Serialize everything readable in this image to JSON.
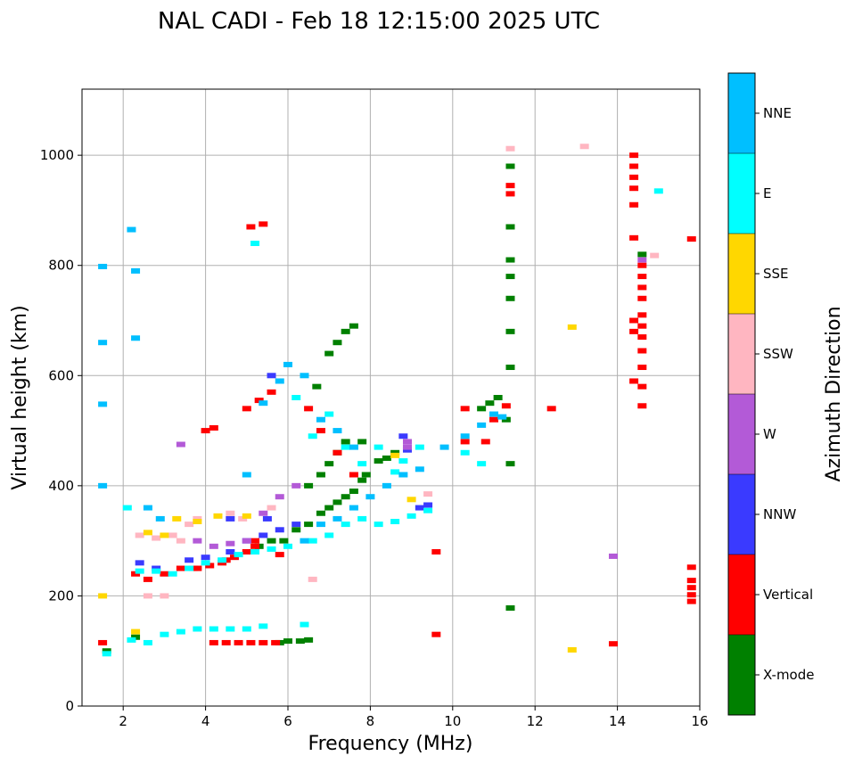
{
  "chart_data": {
    "type": "scatter",
    "title": "NAL CADI - Feb 18 12:15:00 2025 UTC",
    "xlabel": "Frequency (MHz)",
    "ylabel": "Virtual height (km)",
    "xlim": [
      1,
      16
    ],
    "ylim": [
      0,
      1120
    ],
    "xticks": [
      2,
      4,
      6,
      8,
      10,
      12,
      14,
      16
    ],
    "yticks": [
      0,
      200,
      400,
      600,
      800,
      1000
    ],
    "grid": true,
    "colorbar": {
      "title": "Azimuth Direction",
      "categories": [
        {
          "name": "X-mode",
          "color": "#008000"
        },
        {
          "name": "Vertical",
          "color": "#ff0000"
        },
        {
          "name": "NNW",
          "color": "#3a3aff"
        },
        {
          "name": "W",
          "color": "#b35ad7"
        },
        {
          "name": "SSW",
          "color": "#ffb6c1"
        },
        {
          "name": "SSE",
          "color": "#ffd700"
        },
        {
          "name": "E",
          "color": "#00ffff"
        },
        {
          "name": "NNE",
          "color": "#00bfff"
        }
      ]
    },
    "series": [
      {
        "name": "X-mode",
        "points": [
          [
            1.6,
            100
          ],
          [
            2.3,
            125
          ],
          [
            5.8,
            115
          ],
          [
            6.0,
            118
          ],
          [
            6.3,
            118
          ],
          [
            6.5,
            120
          ],
          [
            5.9,
            300
          ],
          [
            6.2,
            320
          ],
          [
            6.5,
            330
          ],
          [
            6.8,
            350
          ],
          [
            7.0,
            360
          ],
          [
            7.2,
            370
          ],
          [
            7.4,
            380
          ],
          [
            7.6,
            390
          ],
          [
            7.8,
            410
          ],
          [
            7.9,
            420
          ],
          [
            8.2,
            445
          ],
          [
            8.4,
            450
          ],
          [
            8.6,
            460
          ],
          [
            6.5,
            400
          ],
          [
            6.8,
            420
          ],
          [
            7.0,
            440
          ],
          [
            7.2,
            460
          ],
          [
            7.4,
            480
          ],
          [
            7.8,
            480
          ],
          [
            6.7,
            580
          ],
          [
            7.0,
            640
          ],
          [
            7.2,
            660
          ],
          [
            7.4,
            680
          ],
          [
            7.6,
            690
          ],
          [
            10.7,
            540
          ],
          [
            10.9,
            550
          ],
          [
            11.1,
            560
          ],
          [
            11.3,
            520
          ],
          [
            11.4,
            980
          ],
          [
            11.4,
            870
          ],
          [
            11.4,
            810
          ],
          [
            11.4,
            780
          ],
          [
            11.4,
            740
          ],
          [
            11.4,
            680
          ],
          [
            11.4,
            615
          ],
          [
            11.4,
            440
          ],
          [
            11.4,
            178
          ],
          [
            14.6,
            820
          ],
          [
            5.3,
            290
          ],
          [
            5.6,
            300
          ]
        ]
      },
      {
        "name": "Vertical",
        "points": [
          [
            1.5,
            115
          ],
          [
            4.2,
            115
          ],
          [
            4.5,
            115
          ],
          [
            4.8,
            115
          ],
          [
            5.1,
            115
          ],
          [
            5.4,
            115
          ],
          [
            5.7,
            115
          ],
          [
            2.3,
            240
          ],
          [
            2.6,
            230
          ],
          [
            3.0,
            240
          ],
          [
            3.4,
            250
          ],
          [
            3.8,
            250
          ],
          [
            4.1,
            255
          ],
          [
            4.4,
            260
          ],
          [
            4.7,
            270
          ],
          [
            5.0,
            280
          ],
          [
            5.2,
            290
          ],
          [
            4.0,
            500
          ],
          [
            4.2,
            505
          ],
          [
            5.0,
            540
          ],
          [
            5.3,
            555
          ],
          [
            5.6,
            570
          ],
          [
            5.1,
            870
          ],
          [
            5.4,
            875
          ],
          [
            6.5,
            540
          ],
          [
            6.8,
            500
          ],
          [
            7.2,
            460
          ],
          [
            7.6,
            420
          ],
          [
            9.6,
            280
          ],
          [
            9.6,
            130
          ],
          [
            10.3,
            540
          ],
          [
            10.3,
            480
          ],
          [
            10.8,
            480
          ],
          [
            11.0,
            520
          ],
          [
            11.3,
            545
          ],
          [
            11.4,
            945
          ],
          [
            11.4,
            930
          ],
          [
            12.4,
            540
          ],
          [
            13.9,
            113
          ],
          [
            14.4,
            1000
          ],
          [
            14.4,
            980
          ],
          [
            14.4,
            960
          ],
          [
            14.4,
            940
          ],
          [
            14.4,
            910
          ],
          [
            14.4,
            850
          ],
          [
            14.4,
            700
          ],
          [
            14.4,
            680
          ],
          [
            14.4,
            590
          ],
          [
            14.6,
            800
          ],
          [
            14.6,
            780
          ],
          [
            14.6,
            760
          ],
          [
            14.6,
            740
          ],
          [
            14.6,
            710
          ],
          [
            14.6,
            690
          ],
          [
            14.6,
            670
          ],
          [
            14.6,
            645
          ],
          [
            14.6,
            615
          ],
          [
            14.6,
            580
          ],
          [
            14.6,
            545
          ],
          [
            15.8,
            848
          ],
          [
            15.8,
            252
          ],
          [
            15.8,
            228
          ],
          [
            15.8,
            215
          ],
          [
            15.8,
            202
          ],
          [
            15.8,
            190
          ],
          [
            3.7,
            250
          ],
          [
            4.5,
            265
          ],
          [
            5.2,
            300
          ],
          [
            5.8,
            275
          ]
        ]
      },
      {
        "name": "NNW",
        "points": [
          [
            2.4,
            260
          ],
          [
            2.8,
            250
          ],
          [
            3.6,
            265
          ],
          [
            4.0,
            270
          ],
          [
            4.6,
            280
          ],
          [
            5.0,
            300
          ],
          [
            5.4,
            310
          ],
          [
            5.8,
            320
          ],
          [
            6.2,
            330
          ],
          [
            8.8,
            490
          ],
          [
            8.9,
            465
          ],
          [
            9.2,
            360
          ],
          [
            9.4,
            365
          ],
          [
            5.6,
            600
          ],
          [
            5.5,
            340
          ],
          [
            4.6,
            340
          ]
        ]
      },
      {
        "name": "W",
        "points": [
          [
            3.4,
            475
          ],
          [
            3.8,
            300
          ],
          [
            4.2,
            290
          ],
          [
            4.6,
            295
          ],
          [
            5.0,
            300
          ],
          [
            5.4,
            350
          ],
          [
            5.8,
            380
          ],
          [
            6.2,
            400
          ],
          [
            8.9,
            480
          ],
          [
            8.9,
            470
          ],
          [
            13.9,
            272
          ],
          [
            14.6,
            810
          ]
        ]
      },
      {
        "name": "SSW",
        "points": [
          [
            2.4,
            310
          ],
          [
            2.8,
            305
          ],
          [
            3.2,
            310
          ],
          [
            3.6,
            330
          ],
          [
            2.6,
            200
          ],
          [
            3.0,
            200
          ],
          [
            3.4,
            300
          ],
          [
            3.8,
            340
          ],
          [
            4.6,
            350
          ],
          [
            9.4,
            385
          ],
          [
            11.4,
            1012
          ],
          [
            13.2,
            1016
          ],
          [
            14.9,
            818
          ],
          [
            6.6,
            230
          ],
          [
            4.9,
            340
          ],
          [
            5.6,
            360
          ]
        ]
      },
      {
        "name": "SSE",
        "points": [
          [
            1.5,
            200
          ],
          [
            2.3,
            135
          ],
          [
            2.6,
            315
          ],
          [
            3.0,
            310
          ],
          [
            3.3,
            340
          ],
          [
            3.8,
            335
          ],
          [
            4.3,
            345
          ],
          [
            5.0,
            345
          ],
          [
            8.6,
            455
          ],
          [
            9.0,
            375
          ],
          [
            12.9,
            688
          ],
          [
            12.9,
            102
          ]
        ]
      },
      {
        "name": "E",
        "points": [
          [
            1.6,
            95
          ],
          [
            2.1,
            360
          ],
          [
            2.2,
            120
          ],
          [
            2.6,
            115
          ],
          [
            3.0,
            130
          ],
          [
            3.4,
            135
          ],
          [
            3.8,
            140
          ],
          [
            4.2,
            140
          ],
          [
            4.6,
            140
          ],
          [
            5.0,
            140
          ],
          [
            5.4,
            145
          ],
          [
            6.4,
            148
          ],
          [
            2.4,
            245
          ],
          [
            2.8,
            245
          ],
          [
            3.2,
            240
          ],
          [
            3.6,
            250
          ],
          [
            4.0,
            260
          ],
          [
            4.4,
            265
          ],
          [
            4.8,
            275
          ],
          [
            5.2,
            280
          ],
          [
            5.6,
            285
          ],
          [
            6.0,
            290
          ],
          [
            6.6,
            300
          ],
          [
            7.0,
            310
          ],
          [
            7.4,
            330
          ],
          [
            7.8,
            340
          ],
          [
            8.2,
            330
          ],
          [
            8.6,
            335
          ],
          [
            9.0,
            345
          ],
          [
            9.4,
            355
          ],
          [
            8.6,
            425
          ],
          [
            8.8,
            445
          ],
          [
            6.6,
            490
          ],
          [
            7.0,
            530
          ],
          [
            7.4,
            470
          ],
          [
            7.8,
            440
          ],
          [
            8.2,
            470
          ],
          [
            9.2,
            470
          ],
          [
            10.3,
            460
          ],
          [
            10.7,
            440
          ],
          [
            6.2,
            560
          ],
          [
            5.2,
            840
          ],
          [
            15.0,
            935
          ]
        ]
      },
      {
        "name": "NNE",
        "points": [
          [
            1.5,
            660
          ],
          [
            1.5,
            548
          ],
          [
            1.5,
            400
          ],
          [
            2.2,
            865
          ],
          [
            2.3,
            790
          ],
          [
            2.3,
            668
          ],
          [
            2.6,
            360
          ],
          [
            2.9,
            340
          ],
          [
            5.0,
            420
          ],
          [
            5.4,
            550
          ],
          [
            5.8,
            590
          ],
          [
            6.0,
            620
          ],
          [
            6.4,
            600
          ],
          [
            6.8,
            520
          ],
          [
            7.2,
            500
          ],
          [
            7.6,
            470
          ],
          [
            6.4,
            300
          ],
          [
            6.8,
            330
          ],
          [
            7.2,
            340
          ],
          [
            7.6,
            360
          ],
          [
            8.0,
            380
          ],
          [
            8.4,
            400
          ],
          [
            8.8,
            420
          ],
          [
            9.2,
            430
          ],
          [
            9.8,
            470
          ],
          [
            10.3,
            490
          ],
          [
            10.7,
            510
          ],
          [
            11.0,
            530
          ],
          [
            11.2,
            525
          ],
          [
            1.5,
            798
          ]
        ]
      }
    ]
  }
}
